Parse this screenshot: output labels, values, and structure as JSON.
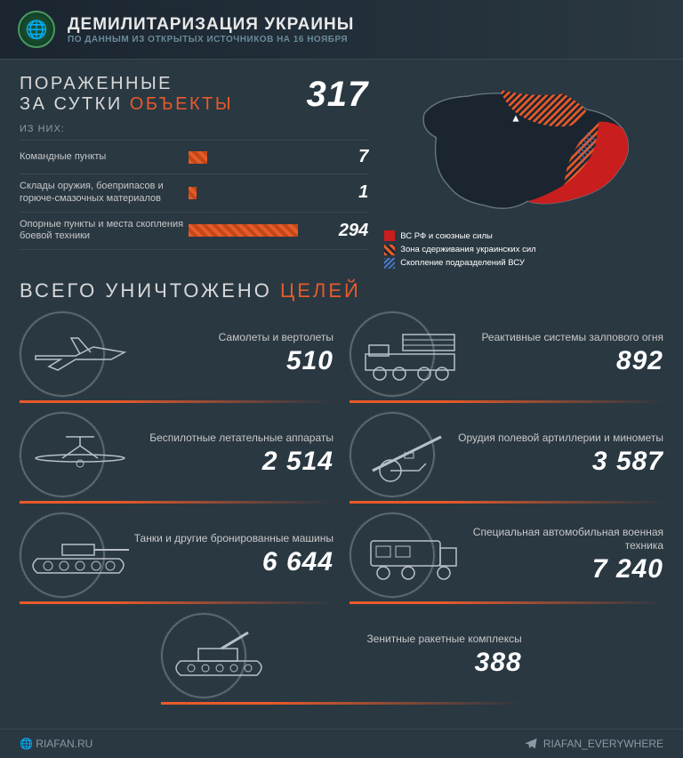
{
  "colors": {
    "background": "#2a3842",
    "accent": "#e85a2a",
    "muted": "#8a9aa8",
    "line": "#5a6870",
    "red_zone": "#c81e1e",
    "hatch_zone": "#e85a2a",
    "blue_zone": "#4a7ac8"
  },
  "header": {
    "title": "ДЕМИЛИТАРИЗАЦИЯ УКРАИНЫ",
    "subtitle": "ПО ДАННЫМ ИЗ ОТКРЫТЫХ ИСТОЧНИКОВ НА 16 НОЯБРЯ"
  },
  "daily": {
    "title_line1_a": "ПОРАЖЕННЫЕ",
    "title_line2_a": "ЗА СУТКИ ",
    "title_line2_b": "ОБЪЕКТЫ",
    "total": "317",
    "of_them": "ИЗ НИХ:",
    "rows": [
      {
        "label": "Командные пункты",
        "value": "7",
        "width_pct": 14
      },
      {
        "label": "Склады оружия, боеприпасов и горюче-смазочных материалов",
        "value": "1",
        "width_pct": 6
      },
      {
        "label": "Опорные пункты и места скопления боевой техники",
        "value": "294",
        "width_pct": 82
      }
    ]
  },
  "map_legend": [
    {
      "swatch": "solid-red",
      "text": "ВС РФ и союзные силы"
    },
    {
      "swatch": "hatch-orange",
      "text": "Зона сдерживания украинских сил"
    },
    {
      "swatch": "hatch-blue",
      "text": "Скопление подразделений ВСУ"
    }
  ],
  "totals": {
    "title_a": "ВСЕГО УНИЧТОЖЕНО ",
    "title_b": "ЦЕЛЕЙ",
    "cards": [
      {
        "label": "Самолеты и вертолеты",
        "value": "510",
        "icon": "plane"
      },
      {
        "label": "Реактивные системы залпового огня",
        "value": "892",
        "icon": "mlrs"
      },
      {
        "label": "Беспилотные летательные аппараты",
        "value": "2 514",
        "icon": "drone"
      },
      {
        "label": "Орудия полевой артиллерии и минометы",
        "value": "3 587",
        "icon": "artillery"
      },
      {
        "label": "Танки и другие бронированные машины",
        "value": "6 644",
        "icon": "tank"
      },
      {
        "label": "Специальная автомобильная военная техника",
        "value": "7 240",
        "icon": "truck"
      },
      {
        "label": "Зенитные ракетные комплексы",
        "value": "388",
        "icon": "sam",
        "center": true
      }
    ]
  },
  "footer": {
    "site": "RIAFAN.RU",
    "telegram": "RIAFAN_EVERYWHERE"
  }
}
